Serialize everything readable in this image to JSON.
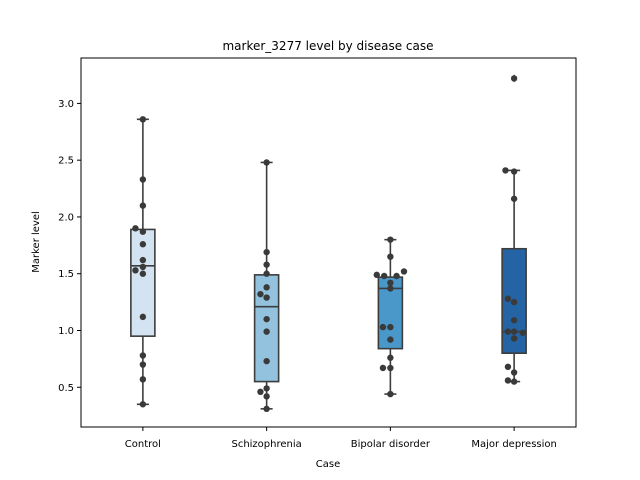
{
  "chart_data": {
    "type": "box",
    "title": "marker_3277 level by disease case",
    "xlabel": "Case",
    "ylabel": "Marker level",
    "ylim": [
      0.15,
      3.4
    ],
    "yticks": [
      0.5,
      1.0,
      1.5,
      2.0,
      2.5,
      3.0
    ],
    "ytick_labels": [
      "0.5",
      "1.0",
      "1.5",
      "2.0",
      "2.5",
      "3.0"
    ],
    "categories": [
      "Control",
      "Schizophrenia",
      "Bipolar disorder",
      "Major depression"
    ],
    "colors": [
      "#d4e3f1",
      "#93c2df",
      "#4a97c9",
      "#2464a4"
    ],
    "point_color": "#3a3a3a",
    "grid": false,
    "legend": "none",
    "boxes": [
      {
        "q1": 0.95,
        "median": 1.57,
        "q3": 1.89,
        "whisker_low": 0.35,
        "whisker_high": 2.86,
        "outliers": []
      },
      {
        "q1": 0.55,
        "median": 1.21,
        "q3": 1.49,
        "whisker_low": 0.31,
        "whisker_high": 2.48,
        "outliers": []
      },
      {
        "q1": 0.84,
        "median": 1.37,
        "q3": 1.47,
        "whisker_low": 0.44,
        "whisker_high": 1.8,
        "outliers": []
      },
      {
        "q1": 0.8,
        "median": 0.99,
        "q3": 1.72,
        "whisker_low": 0.55,
        "whisker_high": 2.41,
        "outliers": [
          3.22
        ]
      }
    ],
    "points": [
      [
        {
          "dx": 0.0,
          "y": 2.86
        },
        {
          "dx": 0.0,
          "y": 2.33
        },
        {
          "dx": 0.0,
          "y": 2.1
        },
        {
          "dx": -0.06,
          "y": 1.9
        },
        {
          "dx": 0.0,
          "y": 1.87
        },
        {
          "dx": 0.0,
          "y": 1.76
        },
        {
          "dx": 0.0,
          "y": 1.62
        },
        {
          "dx": -0.06,
          "y": 1.53
        },
        {
          "dx": 0.0,
          "y": 1.56
        },
        {
          "dx": 0.0,
          "y": 1.5
        },
        {
          "dx": 0.0,
          "y": 1.12
        },
        {
          "dx": 0.0,
          "y": 0.78
        },
        {
          "dx": 0.0,
          "y": 0.7
        },
        {
          "dx": 0.0,
          "y": 0.57
        },
        {
          "dx": 0.0,
          "y": 0.35
        }
      ],
      [
        {
          "dx": 0.0,
          "y": 2.48
        },
        {
          "dx": 0.0,
          "y": 1.69
        },
        {
          "dx": 0.0,
          "y": 1.58
        },
        {
          "dx": 0.0,
          "y": 1.5
        },
        {
          "dx": 0.0,
          "y": 1.38
        },
        {
          "dx": -0.05,
          "y": 1.32
        },
        {
          "dx": 0.0,
          "y": 1.29
        },
        {
          "dx": 0.0,
          "y": 1.1
        },
        {
          "dx": 0.0,
          "y": 0.99
        },
        {
          "dx": 0.0,
          "y": 0.73
        },
        {
          "dx": 0.0,
          "y": 0.49
        },
        {
          "dx": -0.05,
          "y": 0.46
        },
        {
          "dx": 0.0,
          "y": 0.42
        },
        {
          "dx": 0.0,
          "y": 0.31
        }
      ],
      [
        {
          "dx": 0.0,
          "y": 1.8
        },
        {
          "dx": 0.0,
          "y": 1.65
        },
        {
          "dx": -0.11,
          "y": 1.49
        },
        {
          "dx": -0.05,
          "y": 1.48
        },
        {
          "dx": 0.05,
          "y": 1.48
        },
        {
          "dx": 0.11,
          "y": 1.52
        },
        {
          "dx": 0.0,
          "y": 1.42
        },
        {
          "dx": 0.0,
          "y": 1.37
        },
        {
          "dx": -0.06,
          "y": 1.03
        },
        {
          "dx": 0.0,
          "y": 1.03
        },
        {
          "dx": 0.0,
          "y": 0.92
        },
        {
          "dx": 0.0,
          "y": 0.76
        },
        {
          "dx": -0.06,
          "y": 0.67
        },
        {
          "dx": 0.0,
          "y": 0.67
        },
        {
          "dx": 0.0,
          "y": 0.44
        }
      ],
      [
        {
          "dx": 0.0,
          "y": 3.22
        },
        {
          "dx": -0.07,
          "y": 2.41
        },
        {
          "dx": 0.0,
          "y": 2.4
        },
        {
          "dx": 0.0,
          "y": 2.16
        },
        {
          "dx": -0.05,
          "y": 1.28
        },
        {
          "dx": 0.0,
          "y": 1.25
        },
        {
          "dx": 0.0,
          "y": 1.09
        },
        {
          "dx": -0.05,
          "y": 0.99
        },
        {
          "dx": 0.0,
          "y": 0.99
        },
        {
          "dx": 0.07,
          "y": 0.98
        },
        {
          "dx": 0.0,
          "y": 0.93
        },
        {
          "dx": -0.05,
          "y": 0.68
        },
        {
          "dx": 0.0,
          "y": 0.63
        },
        {
          "dx": -0.05,
          "y": 0.56
        },
        {
          "dx": 0.0,
          "y": 0.55
        }
      ]
    ]
  }
}
